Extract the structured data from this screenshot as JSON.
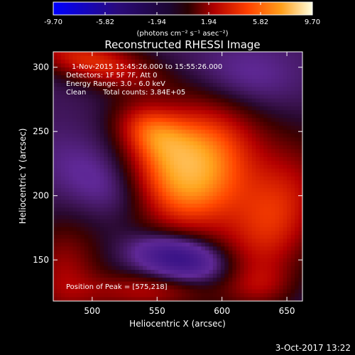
{
  "chart_data": {
    "type": "heatmap",
    "title": "Reconstructed RHESSI Image",
    "xlabel": "Heliocentric X (arcsec)",
    "ylabel": "Heliocentric Y (arcsec)",
    "xlim": [
      470,
      662
    ],
    "ylim": [
      118,
      312
    ],
    "x_ticks": [
      500,
      550,
      600,
      650
    ],
    "y_ticks": [
      150,
      200,
      250,
      300
    ],
    "colorbar": {
      "range": [
        -9.7,
        9.7
      ],
      "tick_values": [
        -9.7,
        -5.82,
        -1.94,
        1.94,
        5.82,
        9.7
      ],
      "tick_labels": [
        "-9.70",
        "-5.82",
        "-1.94",
        "1.94",
        "5.82",
        "9.70"
      ],
      "units_label": "(photons cm⁻² s⁻¹ asec⁻²)"
    },
    "annotations": {
      "time_range": "1-Nov-2015 15:45:26.000 to 15:55:26.000",
      "detectors": "Detectors: 1F 5F 7F, Att 0",
      "energy": "Energy Range: 3.0 - 6.0 keV",
      "clean": "Clean",
      "total_counts": "Total counts: 3.84E+05",
      "peak": "Position of Peak = [575,218]"
    },
    "peak": [
      575,
      218
    ],
    "sources": [
      {
        "x": 575,
        "y": 218,
        "amplitude": 7.5,
        "sx": 30,
        "sy": 40,
        "angle": -35
      },
      {
        "x": 545,
        "y": 250,
        "amplitude": 3.5,
        "sx": 20,
        "sy": 14,
        "angle": -30
      },
      {
        "x": 640,
        "y": 182,
        "amplitude": 4.0,
        "sx": 24,
        "sy": 40,
        "angle": -25
      },
      {
        "x": 500,
        "y": 305,
        "amplitude": 4.0,
        "sx": 35,
        "sy": 12,
        "angle": -15
      },
      {
        "x": 478,
        "y": 140,
        "amplitude": 2.5,
        "sx": 20,
        "sy": 28,
        "angle": 0
      },
      {
        "x": 540,
        "y": 125,
        "amplitude": 2.5,
        "sx": 35,
        "sy": 10,
        "angle": 0
      },
      {
        "x": 565,
        "y": 152,
        "amplitude": -4.5,
        "sx": 25,
        "sy": 12,
        "angle": -10
      },
      {
        "x": 525,
        "y": 200,
        "amplitude": -2.0,
        "sx": 40,
        "sy": 18,
        "angle": -30
      },
      {
        "x": 615,
        "y": 290,
        "amplitude": -1.5,
        "sx": 30,
        "sy": 20,
        "angle": 0
      },
      {
        "x": 630,
        "y": 130,
        "amplitude": 1.5,
        "sx": 18,
        "sy": 12,
        "angle": 0
      }
    ],
    "background_level": -0.9
  },
  "footer": {
    "date": "3-Oct-2017 13:22"
  }
}
